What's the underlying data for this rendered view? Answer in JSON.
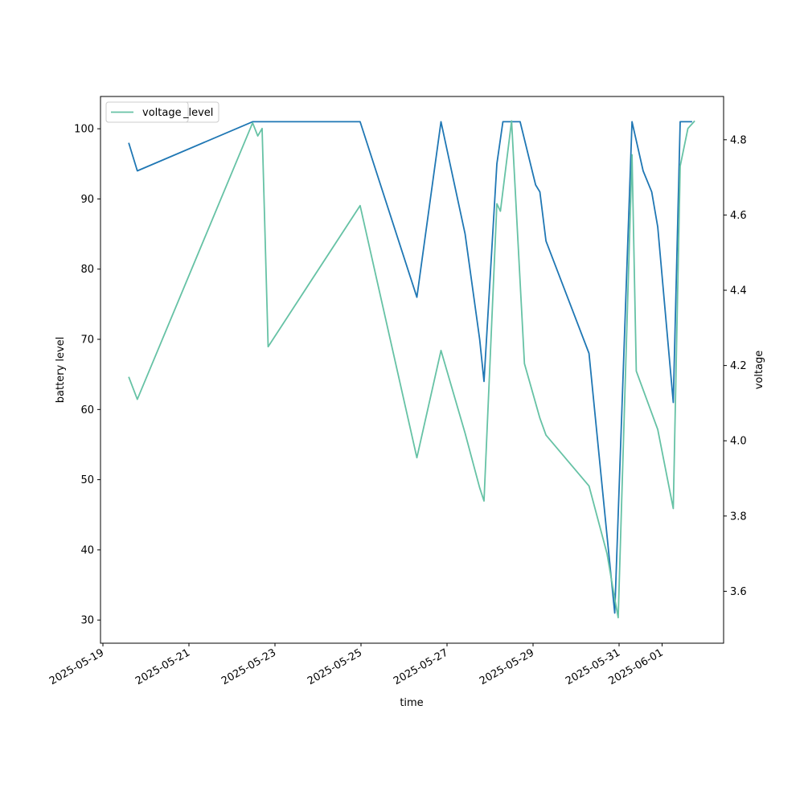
{
  "chart_data": {
    "type": "line",
    "xlabel": "time",
    "ylabel_left": "battery level",
    "ylabel_right": "voltage",
    "x_ticks": [
      "2025-05-19",
      "2025-05-21",
      "2025-05-23",
      "2025-05-25",
      "2025-05-27",
      "2025-05-29",
      "2025-05-31",
      "2025-06-01"
    ],
    "y_left_ticks": [
      30,
      40,
      50,
      60,
      70,
      80,
      90,
      100
    ],
    "y_right_ticks": [
      "3.6",
      "3.8",
      "4.0",
      "4.2",
      "4.4",
      "4.6",
      "4.8"
    ],
    "y_left_lim": [
      26.7,
      104.6
    ],
    "y_right_lim": [
      3.462,
      4.915
    ],
    "legend_location": "top-left",
    "colors": {
      "level": "#1f77b4",
      "voltage": "#66c2a5"
    },
    "series": [
      {
        "name": "level",
        "axis": "left",
        "points": [
          [
            "2025-05-19 14:24",
            98
          ],
          [
            "2025-05-19 19:12",
            94
          ],
          [
            "2025-05-22 11:31",
            101
          ],
          [
            "2025-05-24 23:31",
            101
          ],
          [
            "2025-05-26 07:12",
            76
          ],
          [
            "2025-05-26 20:38",
            101
          ],
          [
            "2025-05-27 10:05",
            85
          ],
          [
            "2025-05-27 18:14",
            70
          ],
          [
            "2025-05-27 20:38",
            64
          ],
          [
            "2025-05-28 03:50",
            95
          ],
          [
            "2025-05-28 07:12",
            101
          ],
          [
            "2025-05-28 14:24",
            101
          ],
          [
            "2025-05-28 16:48",
            101
          ],
          [
            "2025-05-29 01:26",
            92
          ],
          [
            "2025-05-29 03:50",
            91
          ],
          [
            "2025-05-29 07:12",
            84
          ],
          [
            "2025-05-30 07:12",
            68
          ],
          [
            "2025-05-30 17:16",
            42
          ],
          [
            "2025-05-30 21:36",
            31
          ],
          [
            "2025-05-31 07:12",
            101
          ],
          [
            "2025-05-31 13:26",
            94
          ],
          [
            "2025-05-31 18:14",
            91
          ],
          [
            "2025-05-31 21:36",
            86
          ],
          [
            "2025-06-01 06:14",
            61
          ],
          [
            "2025-06-01 10:05",
            101
          ],
          [
            "2025-06-01 16:48",
            101
          ]
        ]
      },
      {
        "name": "voltage",
        "axis": "right",
        "points": [
          [
            "2025-05-19 14:24",
            4.17
          ],
          [
            "2025-05-19 19:12",
            4.11
          ],
          [
            "2025-05-22 11:31",
            4.845
          ],
          [
            "2025-05-22 14:24",
            4.81
          ],
          [
            "2025-05-22 16:48",
            4.83
          ],
          [
            "2025-05-22 20:10",
            4.25
          ],
          [
            "2025-05-24 23:31",
            4.625
          ],
          [
            "2025-05-26 07:12",
            3.955
          ],
          [
            "2025-05-26 20:38",
            4.24
          ],
          [
            "2025-05-27 10:05",
            4.02
          ],
          [
            "2025-05-27 18:14",
            3.875
          ],
          [
            "2025-05-27 20:38",
            3.84
          ],
          [
            "2025-05-28 03:50",
            4.63
          ],
          [
            "2025-05-28 05:46",
            4.61
          ],
          [
            "2025-05-28 12:00",
            4.85
          ],
          [
            "2025-05-28 19:12",
            4.205
          ],
          [
            "2025-05-29 03:50",
            4.06
          ],
          [
            "2025-05-29 07:12",
            4.015
          ],
          [
            "2025-05-30 07:12",
            3.88
          ],
          [
            "2025-05-30 17:16",
            3.7
          ],
          [
            "2025-05-30 21:36",
            3.58
          ],
          [
            "2025-05-30 23:31",
            3.53
          ],
          [
            "2025-05-31 07:12",
            4.76
          ],
          [
            "2025-05-31 09:36",
            4.185
          ],
          [
            "2025-05-31 21:36",
            4.03
          ],
          [
            "2025-06-01 06:14",
            3.82
          ],
          [
            "2025-06-01 10:05",
            4.73
          ],
          [
            "2025-06-01 14:24",
            4.83
          ],
          [
            "2025-06-01 18:14",
            4.85
          ]
        ]
      }
    ]
  }
}
